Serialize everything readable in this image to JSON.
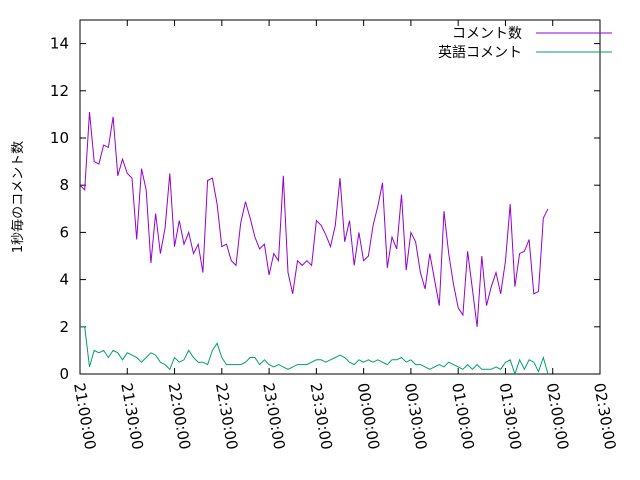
{
  "chart_data": {
    "type": "line",
    "title": "",
    "ylabel": "1秒毎のコメント数",
    "xlabel": "",
    "ylim": [
      0,
      15
    ],
    "yticks": [
      0,
      2,
      4,
      6,
      8,
      10,
      12,
      14
    ],
    "xticks": [
      "21:00:00",
      "21:30:00",
      "22:00:00",
      "22:30:00",
      "23:00:00",
      "23:30:00",
      "00:00:00",
      "00:30:00",
      "01:00:00",
      "01:30:00",
      "02:00:00",
      "02:30:00"
    ],
    "x_start": "21:00:00",
    "x_end": "02:30:00",
    "step_minutes": 3,
    "legend_position": "top-right",
    "series": [
      {
        "name": "コメント数",
        "color": "#9400d3",
        "values": [
          8.0,
          7.8,
          11.1,
          9.0,
          8.9,
          9.7,
          9.6,
          10.9,
          8.4,
          9.1,
          8.5,
          8.3,
          5.7,
          8.7,
          7.8,
          4.7,
          6.8,
          5.1,
          6.2,
          8.5,
          5.4,
          6.5,
          5.5,
          6.0,
          5.1,
          5.5,
          4.3,
          8.2,
          8.3,
          7.2,
          5.4,
          5.5,
          4.8,
          4.6,
          6.4,
          7.3,
          6.6,
          5.8,
          5.3,
          5.5,
          4.2,
          5.1,
          4.8,
          8.4,
          4.3,
          3.4,
          4.8,
          4.6,
          4.8,
          4.6,
          6.5,
          6.3,
          5.9,
          5.4,
          6.3,
          8.3,
          5.6,
          6.5,
          4.6,
          6.0,
          4.8,
          5.0,
          6.3,
          7.1,
          8.1,
          4.5,
          5.8,
          5.3,
          7.6,
          4.4,
          6.0,
          5.6,
          4.3,
          3.6,
          5.1,
          4.0,
          2.9,
          6.9,
          5.1,
          3.8,
          2.8,
          2.5,
          5.2,
          3.6,
          2.0,
          5.0,
          2.9,
          3.7,
          4.3,
          3.4,
          4.8,
          7.2,
          3.7,
          5.1,
          5.2,
          5.7,
          3.4,
          3.5,
          6.6,
          7.0
        ]
      },
      {
        "name": "英語コメント",
        "color": "#009e73",
        "values": [
          2.0,
          2.0,
          0.3,
          1.0,
          0.9,
          1.0,
          0.7,
          1.0,
          0.9,
          0.6,
          0.9,
          0.8,
          0.7,
          0.5,
          0.7,
          0.9,
          0.8,
          0.5,
          0.4,
          0.2,
          0.7,
          0.5,
          0.6,
          1.0,
          0.7,
          0.5,
          0.5,
          0.4,
          1.0,
          1.3,
          0.7,
          0.4,
          0.4,
          0.4,
          0.4,
          0.5,
          0.7,
          0.7,
          0.4,
          0.6,
          0.4,
          0.3,
          0.4,
          0.3,
          0.2,
          0.3,
          0.4,
          0.4,
          0.4,
          0.5,
          0.6,
          0.6,
          0.5,
          0.6,
          0.7,
          0.8,
          0.7,
          0.5,
          0.4,
          0.6,
          0.5,
          0.6,
          0.5,
          0.6,
          0.5,
          0.4,
          0.6,
          0.6,
          0.7,
          0.5,
          0.6,
          0.4,
          0.4,
          0.3,
          0.2,
          0.3,
          0.4,
          0.3,
          0.5,
          0.4,
          0.3,
          0.2,
          0.4,
          0.2,
          0.4,
          0.2,
          0.2,
          0.2,
          0.3,
          0.2,
          0.5,
          0.6,
          0.0,
          0.6,
          0.2,
          0.6,
          0.5,
          0.1,
          0.7,
          0.0
        ]
      }
    ]
  }
}
